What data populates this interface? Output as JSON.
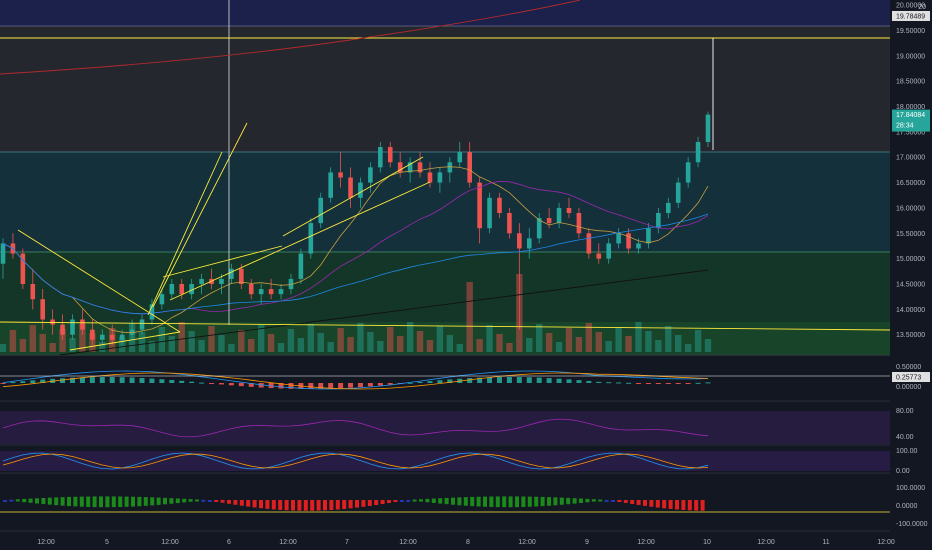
{
  "price_axis": {
    "currency": "USD",
    "top_label": "20",
    "labels": [
      "20.00000",
      "19.50000",
      "19.00000",
      "18.50000",
      "18.00000",
      "17.50000",
      "17.00000",
      "16.50000",
      "16.00000",
      "15.50000",
      "15.00000",
      "14.50000",
      "14.00000",
      "13.50000"
    ],
    "current_price": "17.84084",
    "countdown": "28:34",
    "line_tag": "19.78489"
  },
  "macd_axis": {
    "labels": [
      "0.50000",
      "0.00000"
    ],
    "tag": "0.25773"
  },
  "rsi_axis": {
    "labels": [
      "80.00",
      "40.00"
    ]
  },
  "stoch_axis": {
    "labels": [
      "100.00",
      "0.00"
    ]
  },
  "cci_axis": {
    "labels": [
      "100.0000",
      "0.0000",
      "-100.0000"
    ]
  },
  "time_axis": {
    "labels": [
      "12:00",
      "5",
      "12:00",
      "6",
      "12:00",
      "7",
      "12:00",
      "8",
      "12:00",
      "9",
      "12:00",
      "10",
      "12:00",
      "11",
      "12:00"
    ]
  },
  "colors": {
    "up": "#26a69a",
    "down": "#ef5350",
    "yellow": "#ffeb3b",
    "background": "#131722"
  },
  "chart_data": {
    "type": "candlestick",
    "ylim": [
      13.1,
      20.1
    ],
    "candles": [
      [
        14.9,
        15.4,
        14.6,
        15.3
      ],
      [
        15.3,
        15.5,
        15.0,
        15.1
      ],
      [
        15.1,
        15.2,
        14.4,
        14.5
      ],
      [
        14.5,
        14.8,
        14.0,
        14.2
      ],
      [
        14.2,
        14.4,
        13.6,
        13.8
      ],
      [
        13.8,
        14.0,
        13.5,
        13.7
      ],
      [
        13.7,
        13.9,
        13.4,
        13.5
      ],
      [
        13.5,
        13.9,
        13.4,
        13.8
      ],
      [
        13.8,
        14.0,
        13.5,
        13.6
      ],
      [
        13.6,
        13.8,
        13.3,
        13.4
      ],
      [
        13.4,
        13.6,
        13.3,
        13.5
      ],
      [
        13.5,
        13.7,
        13.3,
        13.4
      ],
      [
        13.4,
        13.6,
        13.3,
        13.5
      ],
      [
        13.5,
        13.8,
        13.4,
        13.6
      ],
      [
        13.6,
        13.9,
        13.5,
        13.8
      ],
      [
        13.8,
        14.2,
        13.7,
        14.1
      ],
      [
        14.1,
        14.4,
        14.0,
        14.3
      ],
      [
        14.3,
        14.6,
        14.2,
        14.5
      ],
      [
        14.5,
        14.6,
        14.2,
        14.3
      ],
      [
        14.3,
        14.6,
        14.2,
        14.5
      ],
      [
        14.5,
        14.7,
        14.3,
        14.6
      ],
      [
        14.6,
        14.8,
        14.4,
        14.5
      ],
      [
        14.5,
        14.7,
        14.3,
        14.6
      ],
      [
        14.6,
        14.9,
        14.5,
        14.8
      ],
      [
        14.8,
        14.9,
        14.4,
        14.5
      ],
      [
        14.5,
        14.6,
        14.2,
        14.3
      ],
      [
        14.3,
        14.5,
        14.1,
        14.4
      ],
      [
        14.4,
        14.6,
        14.2,
        14.3
      ],
      [
        14.3,
        14.5,
        14.2,
        14.4
      ],
      [
        14.4,
        14.7,
        14.3,
        14.6
      ],
      [
        14.6,
        15.2,
        14.5,
        15.1
      ],
      [
        15.1,
        15.8,
        15.0,
        15.7
      ],
      [
        15.7,
        16.3,
        15.6,
        16.2
      ],
      [
        16.2,
        16.8,
        16.1,
        16.7
      ],
      [
        16.7,
        17.1,
        16.4,
        16.6
      ],
      [
        16.6,
        16.8,
        16.0,
        16.2
      ],
      [
        16.2,
        16.6,
        16.0,
        16.5
      ],
      [
        16.5,
        16.9,
        16.3,
        16.8
      ],
      [
        16.8,
        17.3,
        16.7,
        17.2
      ],
      [
        17.2,
        17.3,
        16.8,
        16.9
      ],
      [
        16.9,
        17.1,
        16.6,
        16.7
      ],
      [
        16.7,
        17.0,
        16.5,
        16.9
      ],
      [
        16.9,
        17.1,
        16.6,
        16.7
      ],
      [
        16.7,
        16.9,
        16.4,
        16.5
      ],
      [
        16.5,
        16.8,
        16.3,
        16.7
      ],
      [
        16.7,
        17.0,
        16.5,
        16.9
      ],
      [
        16.9,
        17.3,
        16.8,
        17.1
      ],
      [
        17.1,
        17.3,
        16.4,
        16.5
      ],
      [
        16.5,
        16.6,
        15.3,
        15.6
      ],
      [
        15.6,
        16.3,
        15.5,
        16.2
      ],
      [
        16.2,
        16.3,
        15.8,
        15.9
      ],
      [
        15.9,
        16.0,
        15.4,
        15.5
      ],
      [
        15.5,
        15.7,
        13.6,
        15.2
      ],
      [
        15.2,
        15.6,
        15.0,
        15.4
      ],
      [
        15.4,
        15.9,
        15.3,
        15.8
      ],
      [
        15.8,
        16.0,
        15.6,
        15.7
      ],
      [
        15.7,
        16.1,
        15.6,
        16.0
      ],
      [
        16.0,
        16.2,
        15.8,
        15.9
      ],
      [
        15.9,
        16.0,
        15.4,
        15.5
      ],
      [
        15.5,
        15.6,
        15.0,
        15.1
      ],
      [
        15.1,
        15.3,
        14.9,
        15.0
      ],
      [
        15.0,
        15.4,
        14.9,
        15.3
      ],
      [
        15.3,
        15.6,
        15.2,
        15.5
      ],
      [
        15.5,
        15.6,
        15.1,
        15.2
      ],
      [
        15.2,
        15.4,
        15.1,
        15.3
      ],
      [
        15.3,
        15.7,
        15.2,
        15.6
      ],
      [
        15.6,
        16.0,
        15.5,
        15.9
      ],
      [
        15.9,
        16.2,
        15.8,
        16.1
      ],
      [
        16.1,
        16.6,
        16.0,
        16.5
      ],
      [
        16.5,
        17.0,
        16.4,
        16.9
      ],
      [
        16.9,
        17.4,
        16.8,
        17.3
      ],
      [
        17.3,
        17.9,
        17.2,
        17.84
      ]
    ]
  }
}
